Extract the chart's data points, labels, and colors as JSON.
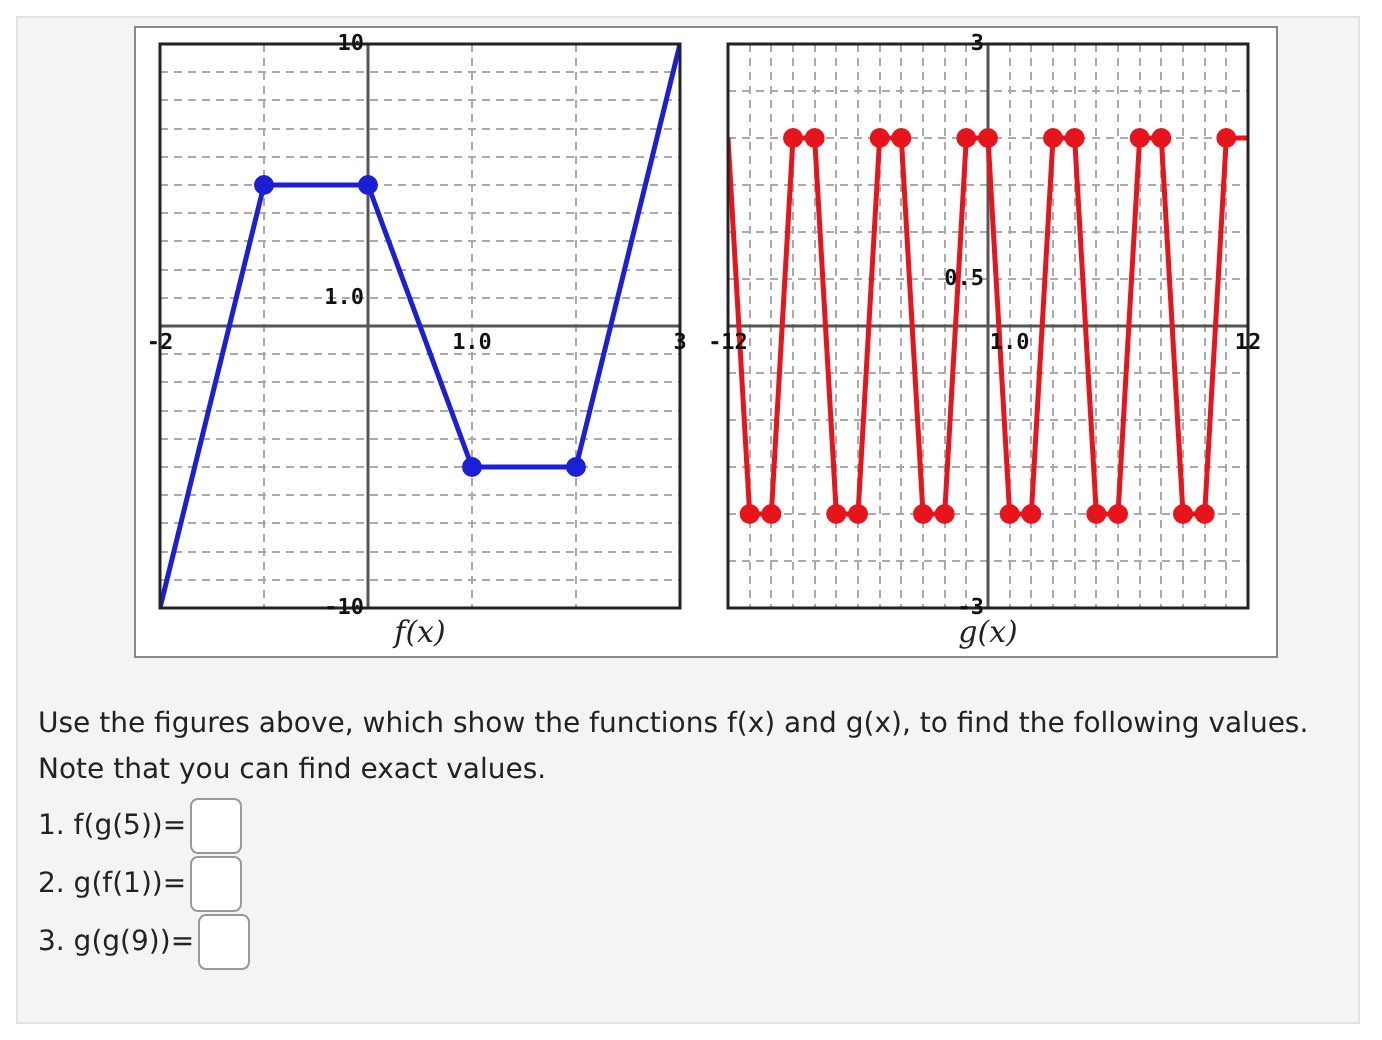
{
  "chart_data": [
    {
      "type": "line",
      "xlabel": "f(x)",
      "xlim": [
        -2,
        3
      ],
      "ylim": [
        -10,
        10
      ],
      "grid": true,
      "xticks": [
        -2,
        {
          "value": -1,
          "label": null
        },
        {
          "value": 0,
          "label": null
        },
        {
          "value": 1,
          "label": "1.0"
        },
        {
          "value": 2,
          "label": null
        },
        3
      ],
      "yticks": [
        -10,
        {
          "value": -9,
          "label": null
        },
        {
          "value": -8,
          "label": null
        },
        {
          "value": -7,
          "label": null
        },
        {
          "value": -6,
          "label": null
        },
        {
          "value": -5,
          "label": null
        },
        {
          "value": -4,
          "label": null
        },
        {
          "value": -3,
          "label": null
        },
        {
          "value": -2,
          "label": null
        },
        {
          "value": -1,
          "label": null
        },
        {
          "value": 0,
          "label": null
        },
        {
          "value": 1,
          "label": "1.0"
        },
        {
          "value": 2,
          "label": null
        },
        {
          "value": 3,
          "label": null
        },
        {
          "value": 4,
          "label": null
        },
        {
          "value": 5,
          "label": null
        },
        {
          "value": 6,
          "label": null
        },
        {
          "value": 7,
          "label": null
        },
        {
          "value": 8,
          "label": null
        },
        {
          "value": 9,
          "label": null
        },
        10
      ],
      "series": [
        {
          "type": "line",
          "marker": "none",
          "color": "#1c20d4",
          "x": [
            -2,
            -1,
            0,
            1,
            2,
            3
          ],
          "values": [
            -10,
            5,
            5,
            -5,
            -5,
            10
          ]
        },
        {
          "type": "scatter",
          "marker": "circle",
          "color": "#1c20d4",
          "x": [
            -1,
            0,
            1,
            2
          ],
          "values": [
            5,
            5,
            -5,
            -5
          ]
        }
      ]
    },
    {
      "type": "line",
      "xlabel": "g(x)",
      "xlim": [
        -12,
        12
      ],
      "ylim": [
        -3,
        3
      ],
      "grid": true,
      "xticks": [
        -12,
        {
          "value": -11,
          "label": null
        },
        {
          "value": -10,
          "label": null
        },
        {
          "value": -9,
          "label": null
        },
        {
          "value": -8,
          "label": null
        },
        {
          "value": -7,
          "label": null
        },
        {
          "value": -6,
          "label": null
        },
        {
          "value": -5,
          "label": null
        },
        {
          "value": -4,
          "label": null
        },
        {
          "value": -3,
          "label": null
        },
        {
          "value": -2,
          "label": null
        },
        {
          "value": -1,
          "label": null
        },
        {
          "value": 0,
          "label": null
        },
        {
          "value": 1,
          "label": "1.0"
        },
        {
          "value": 2,
          "label": null
        },
        {
          "value": 3,
          "label": null
        },
        {
          "value": 4,
          "label": null
        },
        {
          "value": 5,
          "label": null
        },
        {
          "value": 6,
          "label": null
        },
        {
          "value": 7,
          "label": null
        },
        {
          "value": 8,
          "label": null
        },
        {
          "value": 9,
          "label": null
        },
        {
          "value": 10,
          "label": null
        },
        {
          "value": 11,
          "label": null
        },
        12
      ],
      "yticks": [
        -3,
        {
          "value": -2.5,
          "label": null
        },
        {
          "value": -2,
          "label": null
        },
        {
          "value": -1.5,
          "label": null
        },
        {
          "value": -1,
          "label": null
        },
        {
          "value": -0.5,
          "label": null
        },
        {
          "value": 0,
          "label": null
        },
        0.5,
        {
          "value": 1,
          "label": null
        },
        {
          "value": 1.5,
          "label": null
        },
        {
          "value": 2,
          "label": null
        },
        {
          "value": 2.5,
          "label": null
        },
        3
      ],
      "series": [
        {
          "type": "line",
          "marker": "none",
          "color": "#e8141c",
          "x": [
            -12,
            -11,
            -10,
            -9,
            -8,
            -7,
            -6,
            -5,
            -4,
            -3,
            -2,
            -1,
            0,
            1,
            2,
            3,
            4,
            5,
            6,
            7,
            8,
            9,
            10,
            11,
            12
          ],
          "values": [
            2,
            -2,
            -2,
            2,
            2,
            -2,
            -2,
            2,
            2,
            -2,
            -2,
            2,
            2,
            -2,
            -2,
            2,
            2,
            -2,
            -2,
            2,
            2,
            -2,
            -2,
            2,
            2
          ]
        },
        {
          "type": "scatter",
          "marker": "circle",
          "color": "#e8141c",
          "x": [
            -11,
            -10,
            -9,
            -8,
            -7,
            -6,
            -5,
            -4,
            -3,
            -2,
            -1,
            0,
            1,
            2,
            3,
            4,
            5,
            6,
            7,
            8,
            9,
            10,
            11
          ],
          "values": [
            -2,
            -2,
            2,
            2,
            -2,
            -2,
            2,
            2,
            -2,
            -2,
            2,
            2,
            -2,
            -2,
            2,
            2,
            -2,
            -2,
            2,
            2,
            -2,
            -2,
            2
          ]
        }
      ]
    },
    {
      "type": "other",
      "annotations": [
        "Use the figures above, which show the functions f(x) and g(x), to find the following values. Note that you can find exact values.",
        "1. f(g(5))=",
        "2. g(f(1))=",
        "3. g(g(9))="
      ]
    }
  ]
}
